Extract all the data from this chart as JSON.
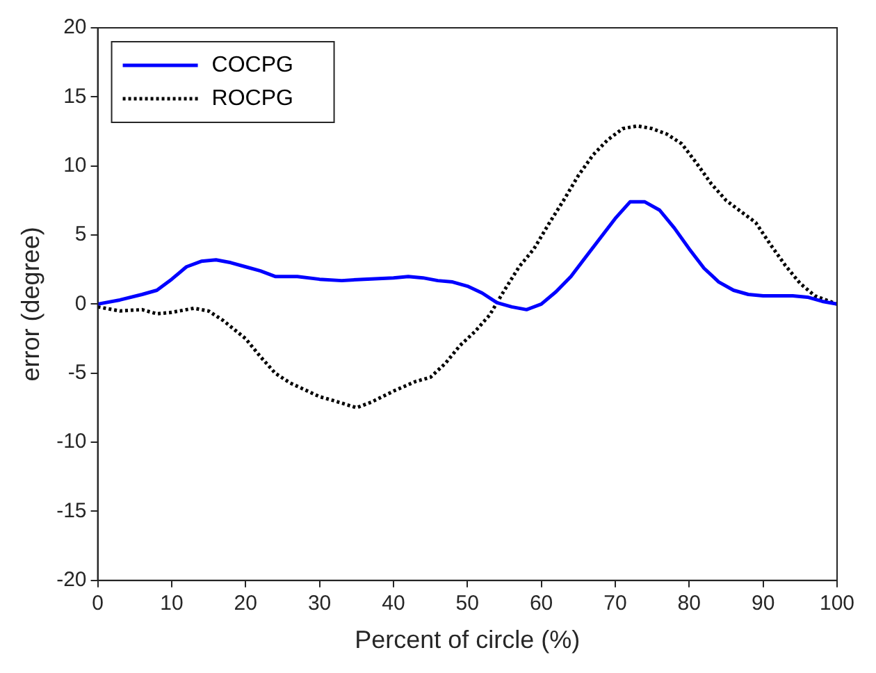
{
  "chart_data": {
    "type": "line",
    "xlabel": "Percent of circle (%)",
    "ylabel": "error (degree)",
    "xlim": [
      0,
      100
    ],
    "xticks": [
      0,
      10,
      20,
      30,
      40,
      50,
      60,
      70,
      80,
      90,
      100
    ],
    "ylim": [
      -20,
      20
    ],
    "yticks": [
      -20,
      -15,
      -10,
      -5,
      0,
      5,
      10,
      15,
      20
    ],
    "grid": false,
    "legend": "top left",
    "marker": "none",
    "series": [
      {
        "name": "COCPG",
        "color": "#0000ff",
        "line_style": "solid",
        "x": [
          0,
          3,
          6,
          8,
          10,
          12,
          14,
          16,
          18,
          20,
          22,
          24,
          27,
          30,
          33,
          36,
          40,
          42,
          44,
          46,
          48,
          50,
          52,
          54,
          56,
          58,
          60,
          62,
          64,
          66,
          68,
          70,
          72,
          74,
          76,
          78,
          80,
          82,
          84,
          86,
          88,
          90,
          92,
          94,
          96,
          98,
          100
        ],
        "values": [
          0,
          0.3,
          0.7,
          1.0,
          1.8,
          2.7,
          3.1,
          3.2,
          3.0,
          2.7,
          2.4,
          2.0,
          2.0,
          1.8,
          1.7,
          1.8,
          1.9,
          2.0,
          1.9,
          1.7,
          1.6,
          1.3,
          0.8,
          0.1,
          -0.2,
          -0.4,
          0,
          0.9,
          2.0,
          3.4,
          4.8,
          6.2,
          7.4,
          7.4,
          6.8,
          5.5,
          4.0,
          2.6,
          1.6,
          1.0,
          0.7,
          0.6,
          0.6,
          0.6,
          0.5,
          0.2,
          0
        ]
      },
      {
        "name": "ROCPG",
        "color": "#000000",
        "line_style": "dotted",
        "x": [
          0,
          3,
          6,
          8,
          10,
          13,
          15,
          17,
          20,
          22,
          24,
          26,
          28,
          30,
          32,
          35,
          37,
          40,
          43,
          45,
          47,
          49,
          51,
          53,
          55,
          57,
          59,
          61,
          63,
          65,
          67,
          69,
          71,
          73,
          75,
          77,
          79,
          81,
          83,
          85,
          87,
          89,
          91,
          93,
          95,
          97,
          100
        ],
        "values": [
          -0.2,
          -0.5,
          -0.4,
          -0.7,
          -0.6,
          -0.3,
          -0.5,
          -1.2,
          -2.5,
          -3.8,
          -5.0,
          -5.7,
          -6.2,
          -6.7,
          -7.0,
          -7.5,
          -7.1,
          -6.3,
          -5.6,
          -5.3,
          -4.3,
          -3.0,
          -2.0,
          -0.8,
          1.0,
          2.7,
          4.0,
          5.8,
          7.5,
          9.3,
          10.8,
          11.9,
          12.7,
          12.9,
          12.7,
          12.3,
          11.6,
          10.2,
          8.7,
          7.5,
          6.7,
          5.9,
          4.3,
          2.8,
          1.5,
          0.6,
          0
        ]
      }
    ]
  }
}
